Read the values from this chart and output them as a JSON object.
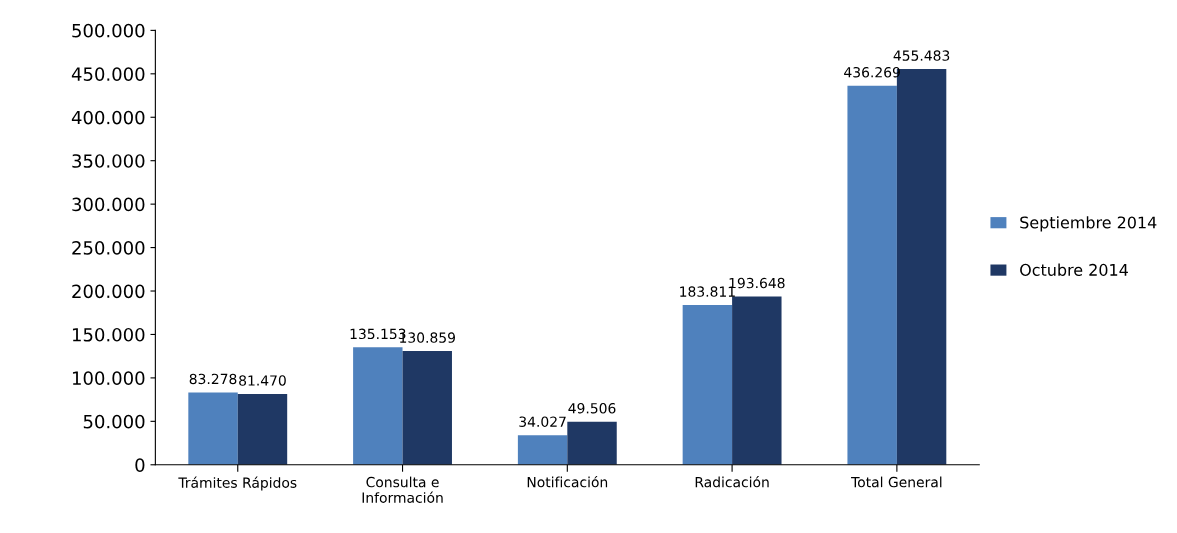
{
  "chart_data": {
    "type": "bar",
    "categories": [
      "Trámites Rápidos",
      "Consulta e\nInformación",
      "Notificación",
      "Radicación",
      "Total General"
    ],
    "series": [
      {
        "name": "Septiembre 2014",
        "color": "#4f81bd",
        "values": [
          83278,
          135153,
          34027,
          183811,
          436269
        ],
        "value_labels": [
          "83.278",
          "135.153",
          "34.027",
          "183.811",
          "436.269"
        ]
      },
      {
        "name": "Octubre 2014",
        "color": "#1f3864",
        "values": [
          81470,
          130859,
          49506,
          193648,
          455483
        ],
        "value_labels": [
          "81.470",
          "130.859",
          "49.506",
          "193.648",
          "455.483"
        ]
      }
    ],
    "ylim": [
      0,
      500000
    ],
    "yticks": [
      0,
      {
        "value": 50000,
        "label": "50.000"
      },
      {
        "value": 100000,
        "label": "100.000"
      },
      {
        "value": 150000,
        "label": "150.000"
      },
      {
        "value": 200000,
        "label": "200.000"
      },
      {
        "value": 250000,
        "label": "250.000"
      },
      {
        "value": 300000,
        "label": "300.000"
      },
      {
        "value": 350000,
        "label": "350.000"
      },
      {
        "value": 400000,
        "label": "400.000"
      },
      {
        "value": 450000,
        "label": "450.000"
      },
      {
        "value": 500000,
        "label": "500.000"
      }
    ],
    "grid": false,
    "legend": "right"
  }
}
